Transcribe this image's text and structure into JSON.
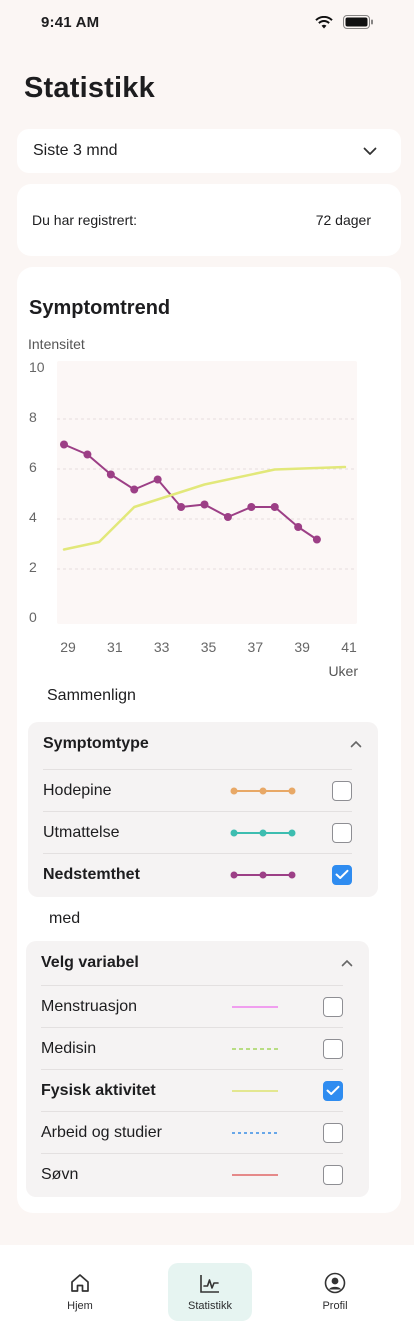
{
  "status": {
    "time": "9:41 AM"
  },
  "title": "Statistikk",
  "period": {
    "selected": "Siste 3 mnd"
  },
  "registration": {
    "label": "Du har registrert:",
    "value": "72 dager"
  },
  "trend": {
    "title": "Symptomtrend",
    "compare_label": "Sammenlign",
    "with_label": "med"
  },
  "chart_data": {
    "type": "line",
    "ylabel": "Intensitet",
    "xlabel": "Uker",
    "ylim": [
      0,
      10
    ],
    "xlim": [
      29,
      41
    ],
    "y_ticks": [
      "0",
      "2",
      "4",
      "6",
      "8",
      "10"
    ],
    "x_ticks": [
      "29",
      "31",
      "33",
      "35",
      "37",
      "39",
      "41"
    ],
    "grid": true,
    "series": [
      {
        "key": "nedstemthet",
        "color": "#9c3f86",
        "markers": true,
        "points": [
          [
            29,
            6.9
          ],
          [
            30,
            6.5
          ],
          [
            31,
            5.7
          ],
          [
            32,
            5.1
          ],
          [
            33,
            5.5
          ],
          [
            34,
            4.4
          ],
          [
            35,
            4.5
          ],
          [
            36,
            4.0
          ],
          [
            37,
            4.4
          ],
          [
            38,
            4.4
          ],
          [
            39,
            3.6
          ],
          [
            39.8,
            3.1
          ]
        ]
      },
      {
        "key": "fysisk_aktivitet",
        "color": "#e2e87a",
        "markers": false,
        "points": [
          [
            29,
            2.7
          ],
          [
            30.5,
            3.0
          ],
          [
            32,
            4.4
          ],
          [
            35,
            5.3
          ],
          [
            38,
            5.9
          ],
          [
            41,
            6.0
          ]
        ]
      }
    ]
  },
  "symptom_panel": {
    "title": "Symptomtype",
    "items": [
      {
        "label": "Hodepine",
        "color": "#e8a866",
        "checked": false,
        "bold": false
      },
      {
        "label": "Utmattelse",
        "color": "#3dbdb0",
        "checked": false,
        "bold": false
      },
      {
        "label": "Nedstemthet",
        "color": "#9c3f86",
        "checked": true,
        "bold": true
      }
    ]
  },
  "variable_panel": {
    "title": "Velg variabel",
    "items": [
      {
        "label": "Menstruasjon",
        "color": "#ee82ee",
        "style": "solid",
        "checked": false,
        "bold": false
      },
      {
        "label": "Medisin",
        "color": "#a4d65e",
        "style": "dashed",
        "checked": false,
        "bold": false
      },
      {
        "label": "Fysisk aktivitet",
        "color": "#dde36f",
        "style": "solid",
        "checked": true,
        "bold": true
      },
      {
        "label": "Arbeid og studier",
        "color": "#3a8ee6",
        "style": "dotted",
        "checked": false,
        "bold": false
      },
      {
        "label": "Søvn",
        "color": "#e06666",
        "style": "solid",
        "checked": false,
        "bold": false
      }
    ]
  },
  "tabs": [
    {
      "label": "Hjem",
      "icon": "home-icon",
      "active": false
    },
    {
      "label": "Statistikk",
      "icon": "chart-pulse-icon",
      "active": true
    },
    {
      "label": "Profil",
      "icon": "profile-icon",
      "active": false
    }
  ]
}
